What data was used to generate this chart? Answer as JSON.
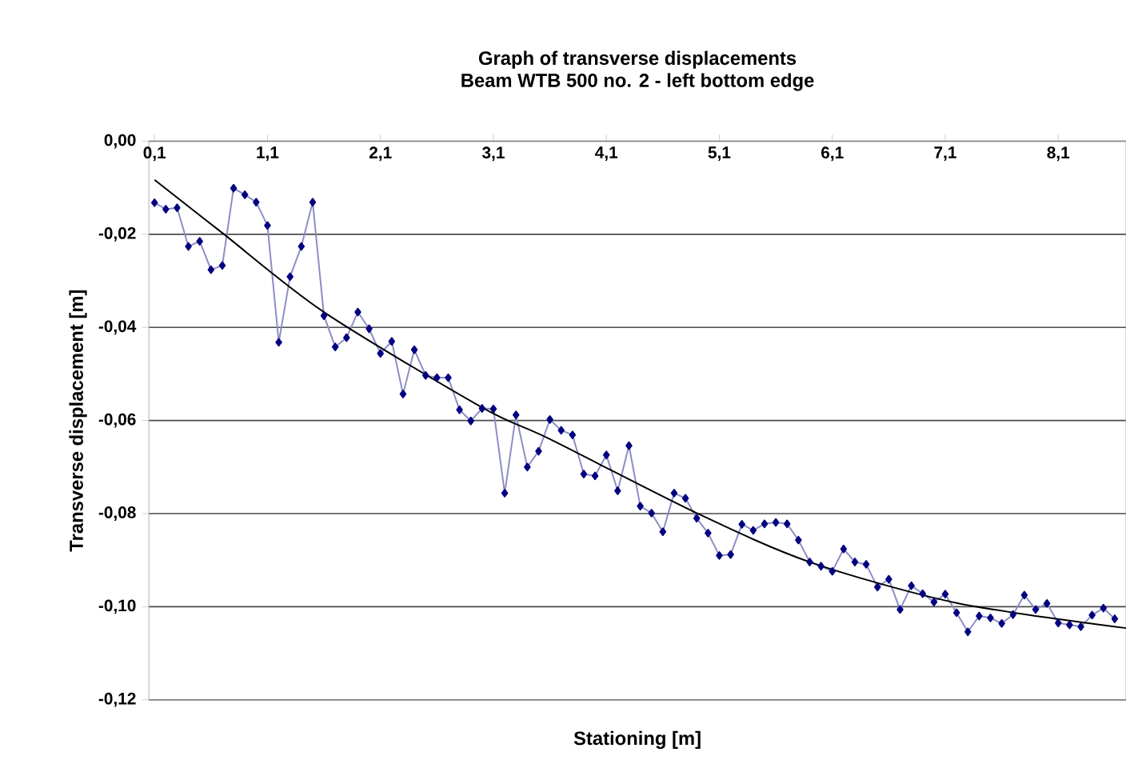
{
  "chart_data": {
    "type": "line",
    "title": "Graph of transverse displacements",
    "subtitle": "Beam WTB 500 no. 2 - left bottom edge",
    "xlabel": "Stationing [m]",
    "ylabel": "Transverse displacement [m]",
    "xlim": [
      0.05,
      8.7
    ],
    "ylim": [
      -0.12,
      0
    ],
    "xticks": [
      {
        "value": 0.1,
        "label": "0,1"
      },
      {
        "value": 1.1,
        "label": "1,1"
      },
      {
        "value": 2.1,
        "label": "2,1"
      },
      {
        "value": 3.1,
        "label": "3,1"
      },
      {
        "value": 4.1,
        "label": "4,1"
      },
      {
        "value": 5.1,
        "label": "5,1"
      },
      {
        "value": 6.1,
        "label": "6,1"
      },
      {
        "value": 7.1,
        "label": "7,1"
      },
      {
        "value": 8.1,
        "label": "8,1"
      }
    ],
    "yticks": [
      {
        "value": -0.12,
        "label": "-0,12"
      },
      {
        "value": -0.1,
        "label": "-0,10"
      },
      {
        "value": -0.08,
        "label": "-0,08"
      },
      {
        "value": -0.06,
        "label": "-0,06"
      },
      {
        "value": -0.04,
        "label": "-0,04"
      },
      {
        "value": -0.02,
        "label": "-0,02"
      },
      {
        "value": 0,
        "label": "0,00"
      }
    ],
    "grid": "y",
    "series": [
      {
        "color": "#000080",
        "marker": "diamond",
        "line_style": "solid",
        "x": [
          0.1,
          0.2,
          0.3,
          0.4,
          0.5,
          0.6,
          0.7,
          0.8,
          0.9,
          1.0,
          1.1,
          1.2,
          1.3,
          1.4,
          1.5,
          1.6,
          1.7,
          1.8,
          1.9,
          2.0,
          2.1,
          2.2,
          2.3,
          2.4,
          2.5,
          2.6,
          2.7,
          2.8,
          2.9,
          3.0,
          3.1,
          3.2,
          3.3,
          3.4,
          3.5,
          3.6,
          3.7,
          3.8,
          3.9,
          4.0,
          4.1,
          4.2,
          4.3,
          4.4,
          4.5,
          4.6,
          4.7,
          4.8,
          4.9,
          5.0,
          5.1,
          5.2,
          5.3,
          5.4,
          5.5,
          5.6,
          5.7,
          5.8,
          5.9,
          6.0,
          6.1,
          6.2,
          6.3,
          6.4,
          6.5,
          6.6,
          6.7,
          6.8,
          6.9,
          7.0,
          7.1,
          7.2,
          7.3,
          7.4,
          7.5,
          7.6,
          7.7,
          7.8,
          7.9,
          8.0,
          8.1,
          8.2,
          8.3,
          8.4,
          8.5,
          8.6
        ],
        "values": [
          -0.0132,
          -0.0146,
          -0.0143,
          -0.0226,
          -0.0215,
          -0.0276,
          -0.0267,
          -0.0101,
          -0.0115,
          -0.0131,
          -0.0181,
          -0.0432,
          -0.0291,
          -0.0226,
          -0.0131,
          -0.0375,
          -0.0442,
          -0.0422,
          -0.0367,
          -0.0403,
          -0.0456,
          -0.043,
          -0.0543,
          -0.0448,
          -0.0503,
          -0.0508,
          -0.0508,
          -0.0577,
          -0.0601,
          -0.0574,
          -0.0575,
          -0.0756,
          -0.0588,
          -0.07,
          -0.0666,
          -0.0598,
          -0.0621,
          -0.0631,
          -0.0715,
          -0.0719,
          -0.0674,
          -0.0751,
          -0.0654,
          -0.0784,
          -0.0799,
          -0.0839,
          -0.0756,
          -0.0767,
          -0.081,
          -0.0842,
          -0.089,
          -0.0888,
          -0.0823,
          -0.0836,
          -0.0822,
          -0.0819,
          -0.0822,
          -0.0857,
          -0.0904,
          -0.0913,
          -0.0924,
          -0.0876,
          -0.0904,
          -0.0909,
          -0.0958,
          -0.0941,
          -0.1006,
          -0.0955,
          -0.0972,
          -0.099,
          -0.0973,
          -0.1013,
          -0.1054,
          -0.102,
          -0.1024,
          -0.1036,
          -0.1017,
          -0.0975,
          -0.1006,
          -0.0993,
          -0.1035,
          -0.1039,
          -0.1043,
          -0.1018,
          -0.1003,
          -0.1026
        ]
      },
      {
        "color": "#000000",
        "marker": "none",
        "line_style": "solid",
        "x": [
          0.1,
          0.7,
          1.6,
          3.0,
          3.6,
          4.9,
          5.9,
          7.2,
          8.7
        ],
        "values": [
          -0.0083,
          -0.0197,
          -0.0367,
          -0.0572,
          -0.064,
          -0.0799,
          -0.0904,
          -0.0992,
          -0.1046
        ]
      }
    ]
  }
}
